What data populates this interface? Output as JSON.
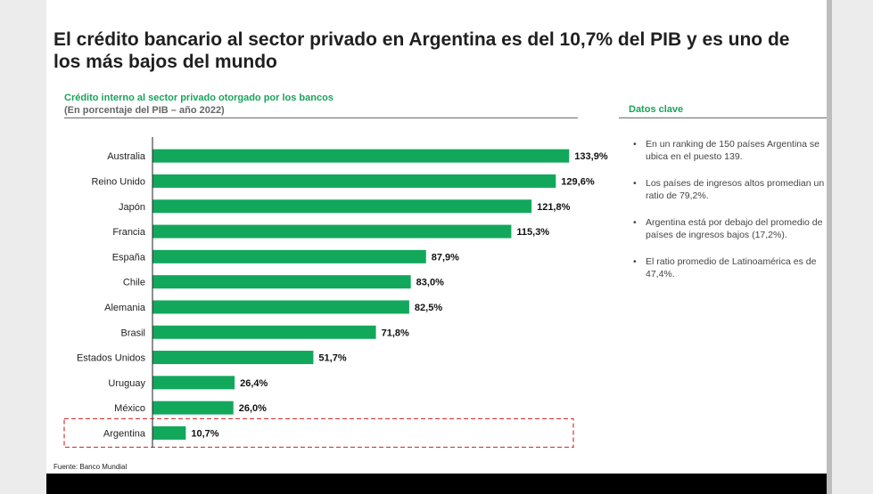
{
  "title": "El crédito bancario al sector privado en Argentina es del 10,7% del PIB y es uno de los más bajos del mundo",
  "source": "Fuente: Banco Mundial",
  "side_panel": {
    "heading": "Datos clave",
    "bullets": [
      "En un ranking de 150 países Argentina se ubica en el puesto 139.",
      "Los países de ingresos altos promedian un ratio de 79,2%.",
      "Argentina está por debajo del promedio de países de ingresos bajos (17,2%).",
      "El ratio promedio de Latinoamérica es de 47,4%."
    ]
  },
  "colors": {
    "bar": "#11a85c",
    "accent_text": "#1aa35a",
    "highlight_box": "#d33a3a"
  },
  "chart_data": {
    "type": "bar",
    "orientation": "horizontal",
    "title": "Crédito interno al sector privado otorgado por los bancos",
    "subtitle": "(En porcentaje del PIB – año 2022)",
    "categories": [
      "Australia",
      "Reino Unido",
      "Japón",
      "Francia",
      "España",
      "Chile",
      "Alemania",
      "Brasil",
      "Estados Unidos",
      "Uruguay",
      "México",
      "Argentina"
    ],
    "values": [
      133.9,
      129.6,
      121.8,
      115.3,
      87.9,
      83.0,
      82.5,
      71.8,
      51.7,
      26.4,
      26.0,
      10.7
    ],
    "value_labels": [
      "133,9%",
      "129,6%",
      "121,8%",
      "115,3%",
      "87,9%",
      "83,0%",
      "82,5%",
      "71,8%",
      "51,7%",
      "26,4%",
      "26,0%",
      "10,7%"
    ],
    "highlighted_category": "Argentina",
    "grid": false
  }
}
